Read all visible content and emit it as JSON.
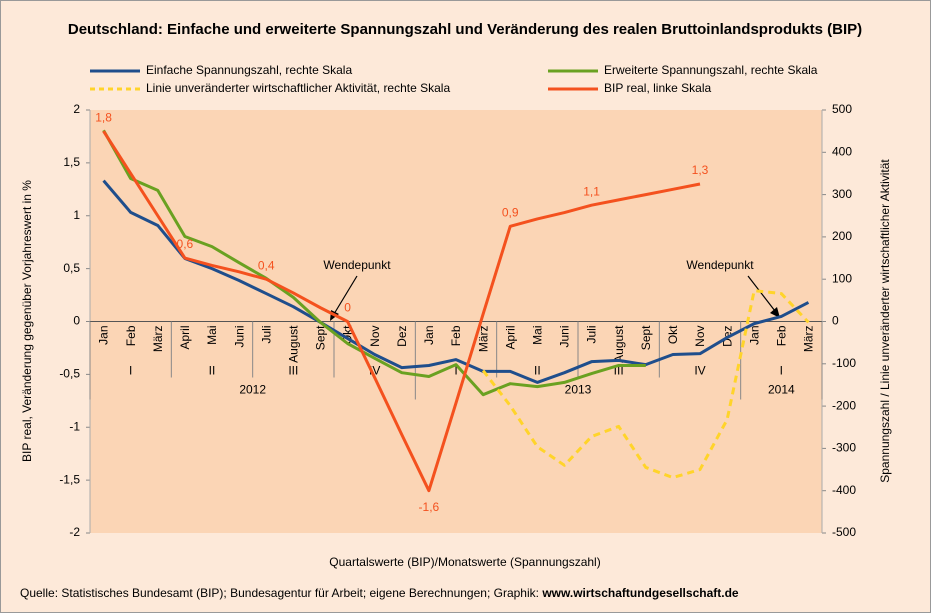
{
  "chart_data": {
    "type": "line",
    "title": "Deutschland: Einfache und erweiterte Spannungszahl und Veränderung des realen Bruttoinlandsprodukts (BIP)",
    "x_label": "Quartalswerte (BIP)/Monatswerte (Spannungszahl)",
    "y_label": "BIP real, Veränderung gegenüber Vorjahreswert in %",
    "y2_label": "Spannungszahl / Linie unveränderter wirtschaftlicher Aktivität",
    "source": "Quelle: Statistisches Bundesamt (BIP); Bundesagentur für Arbeit; eigene Berechnungen; Graphik: ",
    "source_url": "www.wirtschaftundgesellschaft.de",
    "annotations": [
      "Wendepunkt",
      "Wendepunkt"
    ],
    "categories": [
      "Jan",
      "Feb",
      "März",
      "April",
      "Mai",
      "Juni",
      "Juli",
      "August",
      "Sept",
      "Okt",
      "Nov",
      "Dez",
      "Jan",
      "Feb",
      "März",
      "April",
      "Mai",
      "Juni",
      "Juli",
      "August",
      "Sept",
      "Okt",
      "Nov",
      "Dez",
      "Jan",
      "Feb",
      "März"
    ],
    "quarters": [
      "I",
      "II",
      "III",
      "IV",
      "I",
      "II",
      "III",
      "IV",
      "I"
    ],
    "years": [
      "2012",
      "2013",
      "2014"
    ],
    "ylim": [
      -2,
      2
    ],
    "yticks": [
      {
        "value": -2,
        "label": "-2"
      },
      {
        "value": -1.5,
        "label": "-1,5"
      },
      {
        "value": -1,
        "label": "-1"
      },
      {
        "value": -0.5,
        "label": "-0,5"
      },
      0,
      {
        "value": 0.5,
        "label": "0,5"
      },
      1,
      {
        "value": 1.5,
        "label": "1,5"
      },
      2
    ],
    "y2lim": [
      -500,
      500
    ],
    "y2ticks": [
      -500,
      -400,
      -300,
      -200,
      -100,
      0,
      100,
      200,
      300,
      400,
      500
    ],
    "series": [
      {
        "name": "Einfache Spannungszahl, rechte Skala",
        "color": "#1f4e8c",
        "axis": "y2",
        "values": [
          333,
          258,
          227,
          149,
          125,
          97,
          66,
          35,
          -2,
          -40,
          -78,
          -109,
          -104,
          -90,
          -118,
          -118,
          -144,
          -121,
          -95,
          -92,
          -102,
          -78,
          -76,
          -38,
          -5,
          12,
          45
        ]
      },
      {
        "name": "Erweiterte Spannungszahl, rechte Skala",
        "color": "#6aa121",
        "axis": "y2",
        "values": [
          452,
          338,
          310,
          201,
          177,
          139,
          102,
          57,
          -2,
          -52,
          -87,
          -121,
          -130,
          -102,
          -173,
          -147,
          -154,
          -144,
          -123,
          -104,
          -104,
          null,
          null,
          null,
          null,
          null,
          null
        ]
      },
      {
        "name": "Linie unveränderter wirtschaftlicher Aktivität, rechte Skala",
        "color": "#ffd42a",
        "axis": "y2",
        "dashed": true,
        "values": [
          null,
          null,
          null,
          null,
          null,
          null,
          null,
          null,
          null,
          null,
          null,
          null,
          null,
          null,
          -116,
          -199,
          -296,
          -340,
          -272,
          -248,
          -345,
          -369,
          -350,
          -232,
          73,
          66,
          -2
        ]
      },
      {
        "name": "BIP real, linke Skala",
        "color": "#f4511e",
        "values": [
          1.8,
          1.4,
          1.0,
          0.6,
          0.53,
          0.47,
          0.4,
          0.27,
          0.13,
          0,
          -0.53,
          -1.07,
          -1.6,
          -0.77,
          0.07,
          0.9,
          0.97,
          1.03,
          1.1,
          1.15,
          1.2,
          1.25,
          1.3,
          null,
          null,
          null,
          null
        ],
        "value_labels": [
          "1,8",
          null,
          null,
          "0,6",
          null,
          null,
          "0,4",
          null,
          null,
          "0",
          null,
          null,
          "-1,6",
          null,
          null,
          "0,9",
          null,
          null,
          "1,1",
          null,
          null,
          null,
          "1,3",
          null,
          null,
          null,
          null
        ]
      }
    ]
  }
}
